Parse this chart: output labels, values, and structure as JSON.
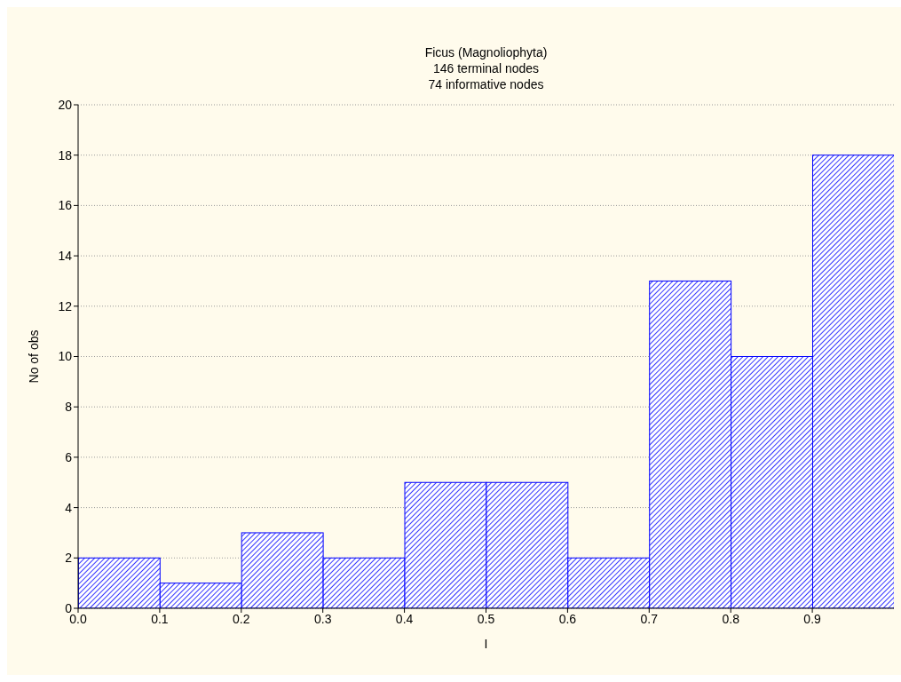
{
  "chart_data": {
    "type": "histogram",
    "title": "Ficus (Magnoliophyta)",
    "subtitle": "146 terminal nodes\n74 informative nodes",
    "xlabel": "I",
    "ylabel": "No of obs",
    "bins": [
      0,
      0.1,
      0.2,
      0.3,
      0.4,
      0.5,
      0.6,
      0.7,
      0.8,
      0.9,
      1.0
    ],
    "values": [
      2,
      1,
      3,
      2,
      5,
      5,
      2,
      13,
      10,
      18
    ],
    "color": "#0000ff",
    "xlim": [
      0,
      1
    ],
    "xticks": [
      {
        "value": 0,
        "label": "0.0"
      },
      {
        "value": 0.1,
        "label": "0.1"
      },
      {
        "value": 0.2,
        "label": "0.2"
      },
      {
        "value": 0.3,
        "label": "0.3"
      },
      {
        "value": 0.4,
        "label": "0.4"
      },
      {
        "value": 0.5,
        "label": "0.5"
      },
      {
        "value": 0.6,
        "label": "0.6"
      },
      {
        "value": 0.7,
        "label": "0.7"
      },
      {
        "value": 0.8,
        "label": "0.8"
      },
      {
        "value": 0.9,
        "label": "0.9"
      }
    ],
    "ylim": [
      0,
      20
    ],
    "yticks": [
      0,
      2,
      4,
      6,
      8,
      10,
      12,
      14,
      16,
      18,
      20
    ],
    "grid": "y"
  }
}
